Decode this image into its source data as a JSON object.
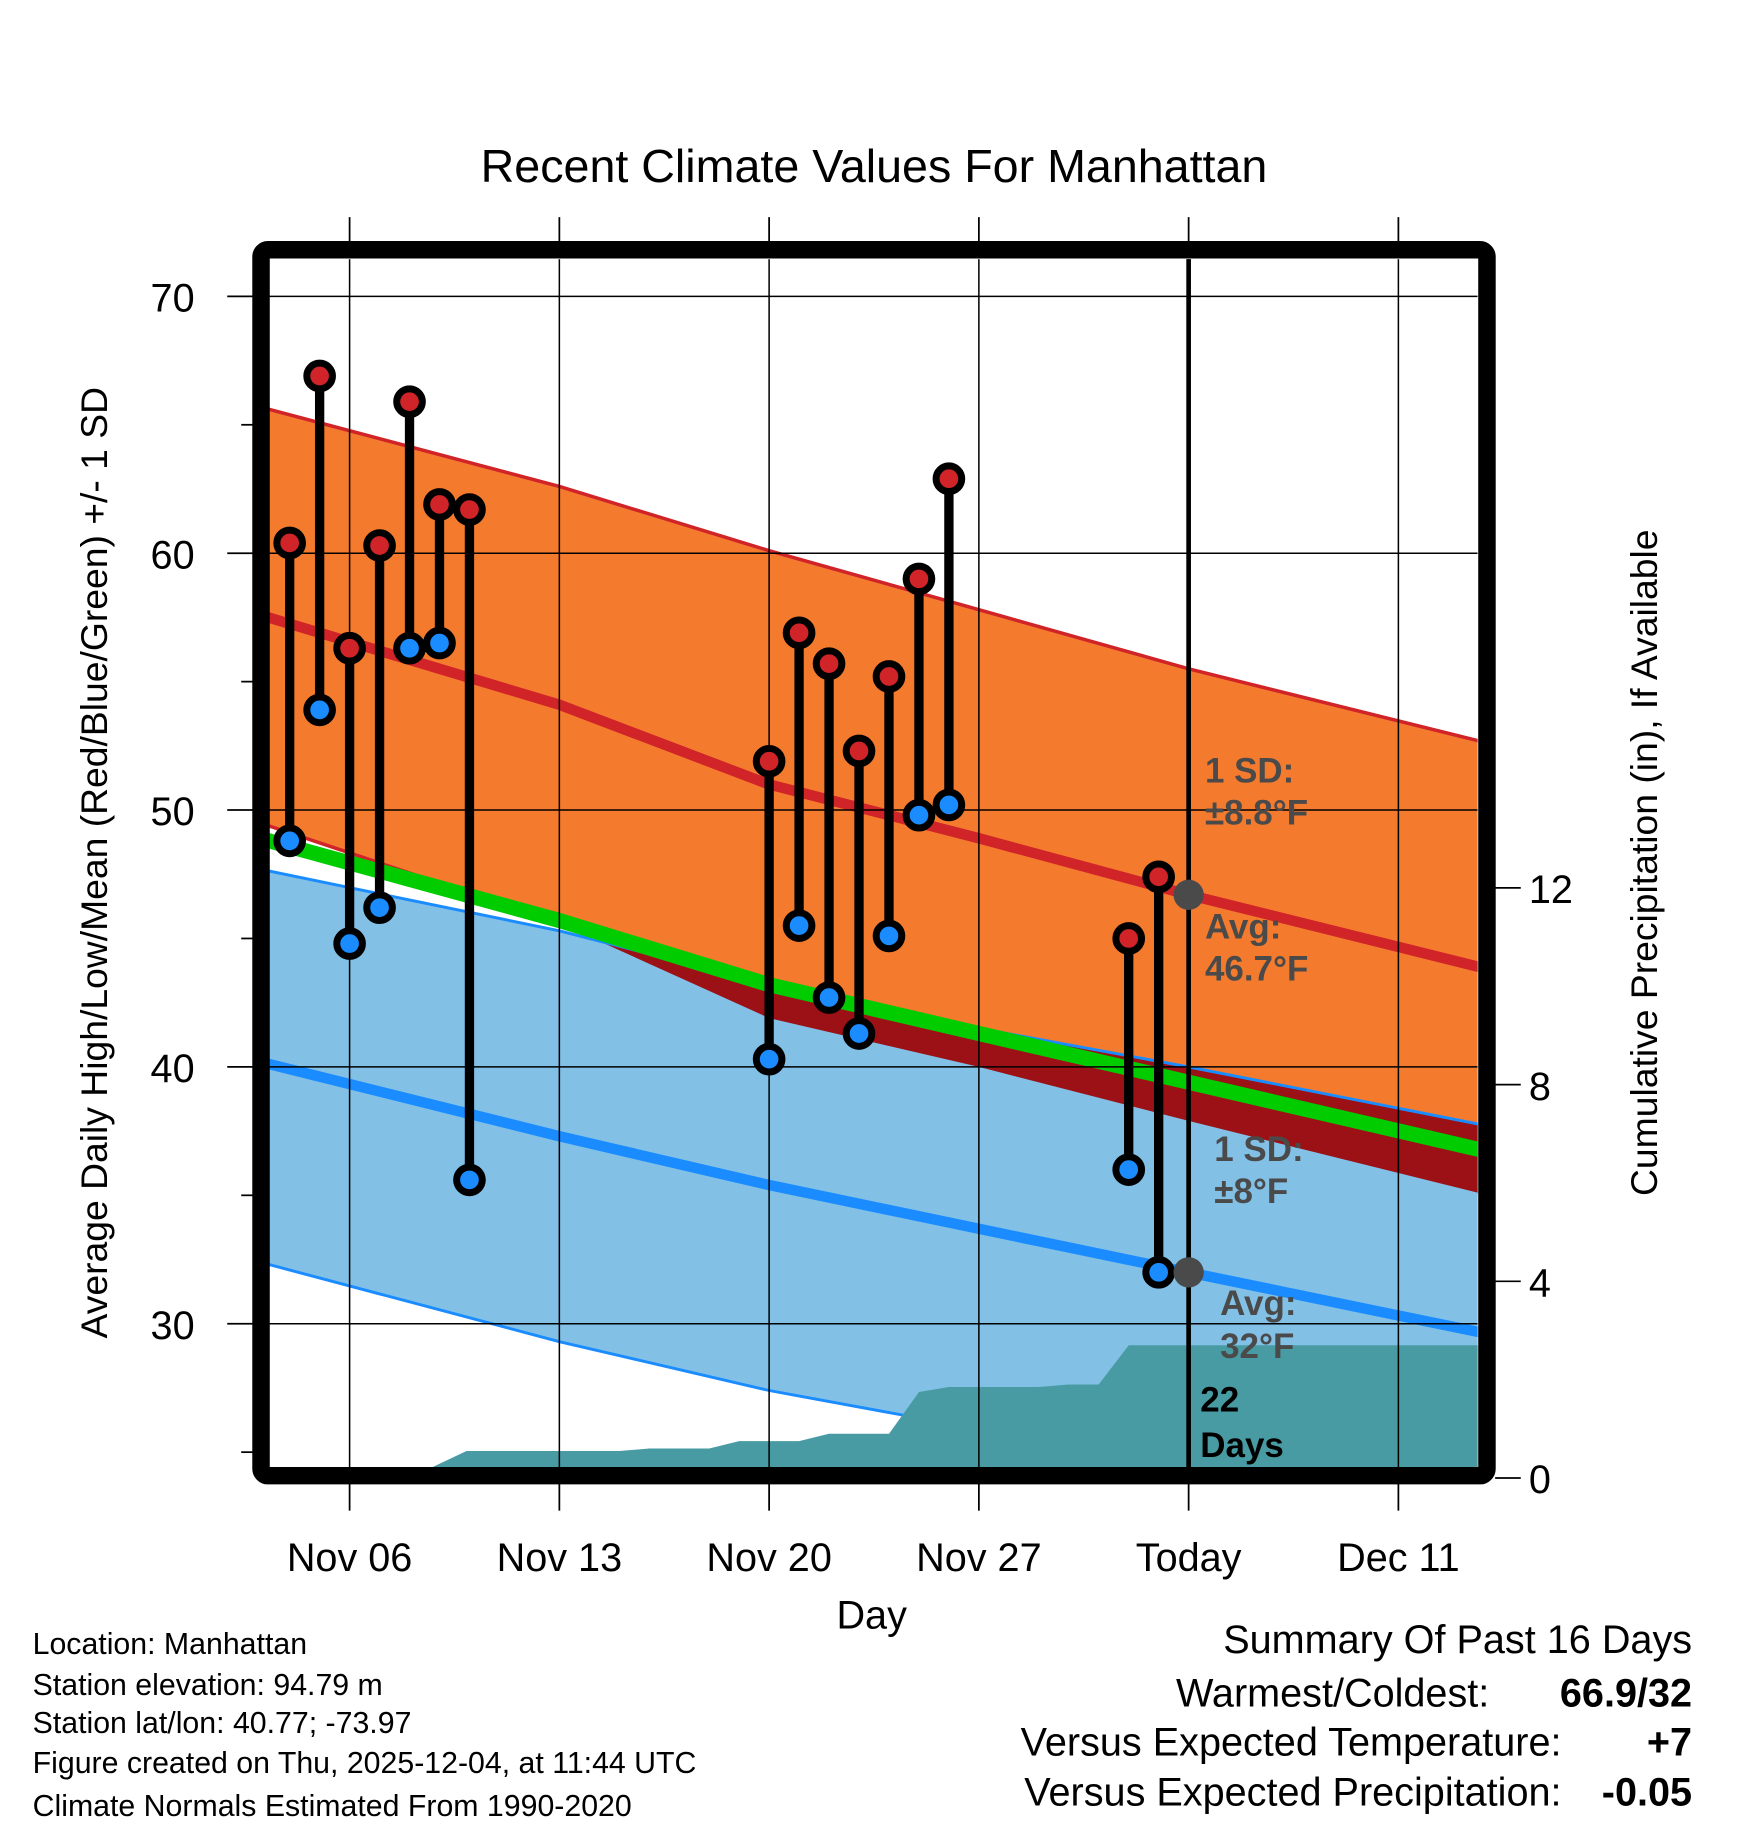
{
  "chart_data": {
    "type": "line",
    "title": "Recent Climate Values For Manhattan",
    "xlabel": "Day",
    "ylabel": "Average Daily High/Low/Mean (Red/Blue/Green) +/- 1 SD",
    "y2label": "Cumulative Precipitation (in), If Available",
    "ylim": [
      24.4,
      72
    ],
    "y2lim": [
      0,
      16
    ],
    "grid": true,
    "x_ticks": [
      {
        "date": "2025-11-06",
        "label": "Nov 06"
      },
      {
        "date": "2025-11-13",
        "label": "Nov 13"
      },
      {
        "date": "2025-11-20",
        "label": "Nov 20"
      },
      {
        "date": "2025-11-27",
        "label": "Nov 27"
      },
      {
        "date": "2025-12-04",
        "label": "Today"
      },
      {
        "date": "2025-12-11",
        "label": "Dec 11"
      }
    ],
    "y_ticks": [
      "30",
      "40",
      "50",
      "60",
      "70"
    ],
    "y2_ticks": [
      "0",
      "4",
      "8",
      "12"
    ],
    "today": "2025-12-04",
    "observed": [
      {
        "date": "2025-11-04",
        "high": 60.4,
        "low": 48.8
      },
      {
        "date": "2025-11-05",
        "high": 66.9,
        "low": 53.9
      },
      {
        "date": "2025-11-06",
        "high": 56.3,
        "low": 44.8
      },
      {
        "date": "2025-11-07",
        "high": 60.3,
        "low": 46.2
      },
      {
        "date": "2025-11-08",
        "high": 65.9,
        "low": 56.3
      },
      {
        "date": "2025-11-09",
        "high": 61.9,
        "low": 56.5
      },
      {
        "date": "2025-11-10",
        "high": 61.7,
        "low": 35.6
      },
      {
        "date": "2025-11-20",
        "high": 51.9,
        "low": 40.3
      },
      {
        "date": "2025-11-21",
        "high": 56.9,
        "low": 45.5
      },
      {
        "date": "2025-11-22",
        "high": 55.7,
        "low": 42.7
      },
      {
        "date": "2025-11-23",
        "high": 52.3,
        "low": 41.3
      },
      {
        "date": "2025-11-24",
        "high": 55.2,
        "low": 45.1
      },
      {
        "date": "2025-11-25",
        "high": 59.0,
        "low": 49.8
      },
      {
        "date": "2025-11-26",
        "high": 62.9,
        "low": 50.2
      },
      {
        "date": "2025-12-02",
        "high": 45.0,
        "low": 36.0
      },
      {
        "date": "2025-12-03",
        "high": 47.4,
        "low": 32.0
      }
    ],
    "normals": {
      "dates": [
        "2025-11-03",
        "2025-11-13",
        "2025-11-20",
        "2025-11-27",
        "2025-12-04",
        "2025-12-14"
      ],
      "high_avg": [
        57.6,
        54.1,
        51.0,
        48.9,
        46.7,
        43.8
      ],
      "high_sd_upper": [
        65.7,
        62.6,
        60.1,
        57.8,
        55.5,
        52.6
      ],
      "high_sd_lower": [
        49.5,
        45.6,
        41.9,
        40.0,
        37.9,
        35.0
      ],
      "low_avg": [
        40.2,
        37.3,
        35.4,
        33.7,
        32.0,
        29.6
      ],
      "low_sd_upper": [
        47.7,
        45.3,
        43.2,
        41.5,
        40.0,
        37.7
      ],
      "low_sd_lower": [
        32.4,
        29.3,
        27.4,
        25.9,
        24.0,
        21.5
      ],
      "mean_avg": [
        48.9,
        45.7,
        43.2,
        41.3,
        39.4,
        36.7
      ]
    },
    "precip_cumulative": [
      [
        "2025-11-08",
        0
      ],
      [
        "2025-11-09.9",
        0.55
      ],
      [
        "2025-11-15",
        0.55
      ],
      [
        "2025-11-16",
        0.6
      ],
      [
        "2025-11-18",
        0.6
      ],
      [
        "2025-11-19",
        0.75
      ],
      [
        "2025-11-21",
        0.75
      ],
      [
        "2025-11-22",
        0.9
      ],
      [
        "2025-11-24",
        0.9
      ],
      [
        "2025-11-25",
        1.75
      ],
      [
        "2025-11-26",
        1.85
      ],
      [
        "2025-11-29",
        1.85
      ],
      [
        "2025-11-30",
        1.9
      ],
      [
        "2025-12-01",
        1.9
      ],
      [
        "2025-12-02",
        2.7
      ],
      [
        "2025-12-14",
        2.7
      ]
    ],
    "annotations": {
      "high_sd_label": "1 SD:",
      "high_sd_value": "±8.8°F",
      "high_avg_label": "Avg:",
      "high_avg_value": "46.7°F",
      "low_sd_label": "1 SD:",
      "low_sd_value": "±8°F",
      "low_avg_label": "Avg:",
      "low_avg_value": "32°F",
      "days_count": "22",
      "days_label": "Days"
    },
    "colors": {
      "high_band": "#f47a2e",
      "high_line": "#d02428",
      "overlap": "#9b1116",
      "low_band": "#82c0e6",
      "low_line": "#1a8cff",
      "mean_line": "#00cc00",
      "precip": "#489ba3",
      "today_marker": "#4a4a4a"
    }
  },
  "footer": {
    "location": "Location: Manhattan",
    "elevation": "Station elevation: 94.79 m",
    "latlon": "Station lat/lon: 40.77; -73.97",
    "created": "Figure created on Thu, 2025-12-04, at 11:44 UTC",
    "normals": "Climate Normals Estimated From 1990-2020"
  },
  "summary": {
    "title": "Summary Of Past 16 Days",
    "warmest_coldest_label": "Warmest/Coldest:",
    "warmest_coldest_value": "66.9/32",
    "temp_label": "Versus Expected Temperature:",
    "temp_value": "+7",
    "temp_color": "#cc2222",
    "precip_label": "Versus Expected Precipitation:",
    "precip_value": "-0.05",
    "precip_color": "#a0522d"
  }
}
